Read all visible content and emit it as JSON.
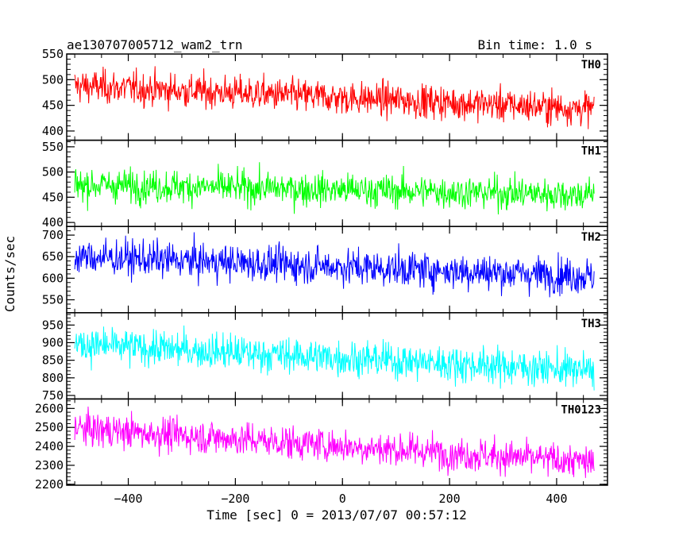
{
  "header": {
    "title": "ae130707005712_wam2_trn",
    "bin_time": "Bin time: 1.0 s"
  },
  "chart_data": {
    "type": "line",
    "xlabel": "Time [sec] 0 = 2013/07/07 00:57:12",
    "ylabel": "Counts/sec",
    "xlim": [
      -515,
      495
    ],
    "x_ticks": [
      -400,
      -200,
      0,
      200,
      400
    ],
    "x_range": [
      -500,
      470
    ],
    "bin_time_s": 1.0,
    "panels": [
      {
        "name": "TH0",
        "color": "#ff0000",
        "ylim": [
          382,
          550
        ],
        "y_ticks": [
          400,
          450,
          500,
          550
        ],
        "trend_start": 488,
        "trend_end": 443,
        "noise": 55
      },
      {
        "name": "TH1",
        "color": "#00ff00",
        "ylim": [
          392,
          563
        ],
        "y_ticks": [
          400,
          450,
          500,
          550
        ],
        "trend_start": 475,
        "trend_end": 455,
        "noise": 55
      },
      {
        "name": "TH2",
        "color": "#0000ff",
        "ylim": [
          520,
          720
        ],
        "y_ticks": [
          550,
          600,
          650,
          700
        ],
        "trend_start": 650,
        "trend_end": 605,
        "noise": 70
      },
      {
        "name": "TH3",
        "color": "#00ffff",
        "ylim": [
          740,
          985
        ],
        "y_ticks": [
          750,
          800,
          850,
          900,
          950
        ],
        "trend_start": 895,
        "trend_end": 820,
        "noise": 85
      },
      {
        "name": "TH0123",
        "color": "#ff00ff",
        "ylim": [
          2195,
          2650
        ],
        "y_ticks": [
          2200,
          2300,
          2400,
          2500,
          2600
        ],
        "trend_start": 2495,
        "trend_end": 2315,
        "noise": 150
      }
    ]
  }
}
